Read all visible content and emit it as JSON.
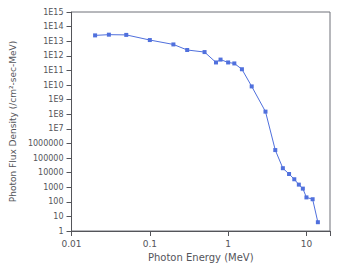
{
  "chart_data": {
    "type": "line",
    "log": true,
    "xlabel": "Photon Energy (MeV)",
    "ylabel": "Photon Flux Density (/cm²-sec-MeV)",
    "x": [
      0.02,
      0.03,
      0.05,
      0.1,
      0.2,
      0.3,
      0.5,
      0.7,
      0.8,
      1.0,
      1.2,
      1.5,
      2.0,
      3.0,
      4.0,
      5.0,
      6.0,
      7.0,
      8.0,
      9.0,
      10.0,
      12.0,
      14.0
    ],
    "values": [
      25000000000000.0,
      28000000000000.0,
      27000000000000.0,
      12000000000000.0,
      6000000000000.0,
      2500000000000.0,
      1800000000000.0,
      350000000000.0,
      550000000000.0,
      350000000000.0,
      300000000000.0,
      120000000000.0,
      8000000000.0,
      150000000.0,
      350000.0,
      20000.0,
      8000.0,
      3500.0,
      1500.0,
      800,
      200,
      150,
      4
    ],
    "marker": "square",
    "xlim": [
      0.01,
      20
    ],
    "ylim": [
      1,
      1000000000000000.0
    ],
    "xticks": [
      0.01,
      0.1,
      1,
      10
    ],
    "yticks": [
      {
        "value": 1000000000000000.0,
        "label": "1E15"
      },
      {
        "value": 100000000000000.0,
        "label": "1E14"
      },
      {
        "value": 10000000000000.0,
        "label": "1E13"
      },
      {
        "value": 1000000000000.0,
        "label": "1E12"
      },
      {
        "value": 100000000000.0,
        "label": "1E11"
      },
      {
        "value": 10000000000.0,
        "label": "1E10"
      },
      {
        "value": 1000000000.0,
        "label": "1E9"
      },
      {
        "value": 100000000.0,
        "label": "1E8"
      },
      {
        "value": 10000000.0,
        "label": "1E7"
      },
      1000000,
      100000,
      10000,
      1000,
      100,
      10,
      1
    ],
    "grid": false
  }
}
